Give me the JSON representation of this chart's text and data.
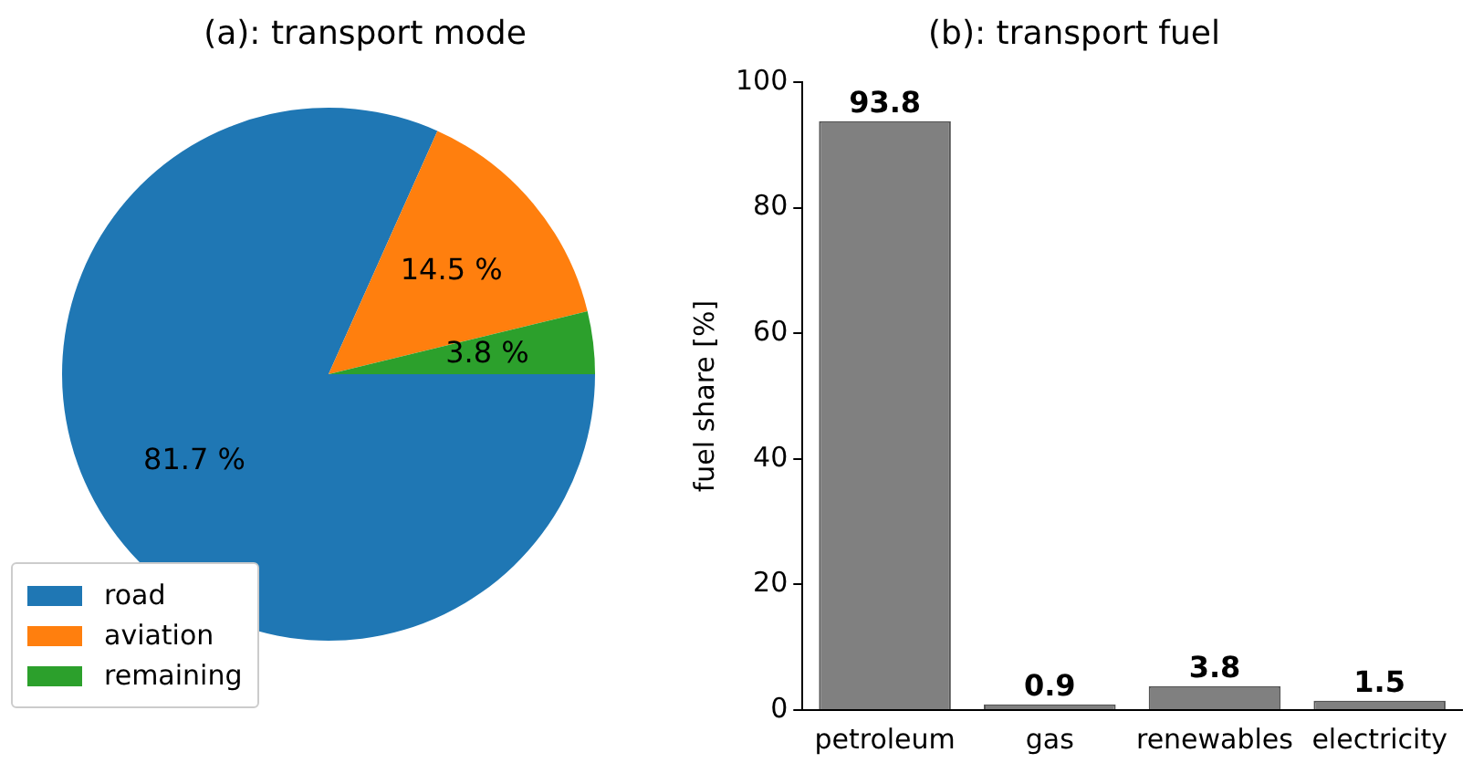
{
  "chart_data": [
    {
      "type": "pie",
      "title": "(a): transport mode",
      "categories": [
        "road",
        "aviation",
        "remaining"
      ],
      "values": [
        81.7,
        14.5,
        3.8
      ],
      "colors": [
        "#1f77b4",
        "#ff7f0e",
        "#2ca02c"
      ],
      "value_labels": [
        "81.7 %",
        "14.5 %",
        "3.8 %"
      ],
      "legend": "bottom left"
    },
    {
      "type": "bar",
      "title": "(b): transport fuel",
      "ylabel": "fuel share [%]",
      "categories": [
        "petroleum",
        "gas",
        "renewables",
        "electricity"
      ],
      "values": [
        93.8,
        0.9,
        3.8,
        1.5
      ],
      "color": "#808080",
      "data_labels": true,
      "ylim": [
        0,
        100
      ],
      "yticks": [
        0,
        20,
        40,
        60,
        80,
        100
      ],
      "grid": false,
      "legend": false
    }
  ]
}
